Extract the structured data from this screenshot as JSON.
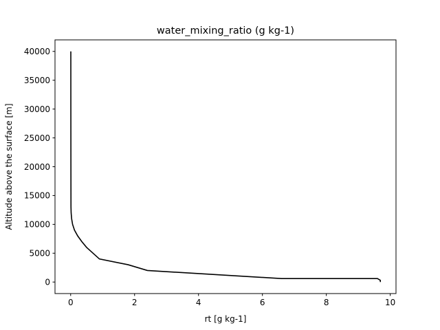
{
  "chart_data": {
    "type": "line",
    "title": "water_mixing_ratio (g kg-1)",
    "xlabel": "rt [g kg-1]",
    "ylabel": "Altitude above the surface [m]",
    "xlim": [
      -0.49,
      10.18
    ],
    "ylim": [
      -2000,
      42000
    ],
    "xticks": [
      0,
      2,
      4,
      6,
      8,
      10
    ],
    "yticks": [
      0,
      5000,
      10000,
      15000,
      20000,
      25000,
      30000,
      35000,
      40000
    ],
    "grid": false,
    "line_color": "#000000",
    "series": [
      {
        "x": [
          9.69,
          9.69,
          9.6,
          6.6,
          2.4,
          1.8,
          0.9,
          0.5,
          0.35,
          0.22,
          0.12,
          0.06,
          0.03,
          0.015,
          0.01,
          0.008,
          0.006,
          0.005
        ],
        "y": [
          0,
          300,
          600,
          600,
          2000,
          3000,
          4000,
          6000,
          7000,
          8000,
          9000,
          10000,
          11000,
          12000,
          13000,
          20000,
          30000,
          40000
        ]
      }
    ]
  }
}
